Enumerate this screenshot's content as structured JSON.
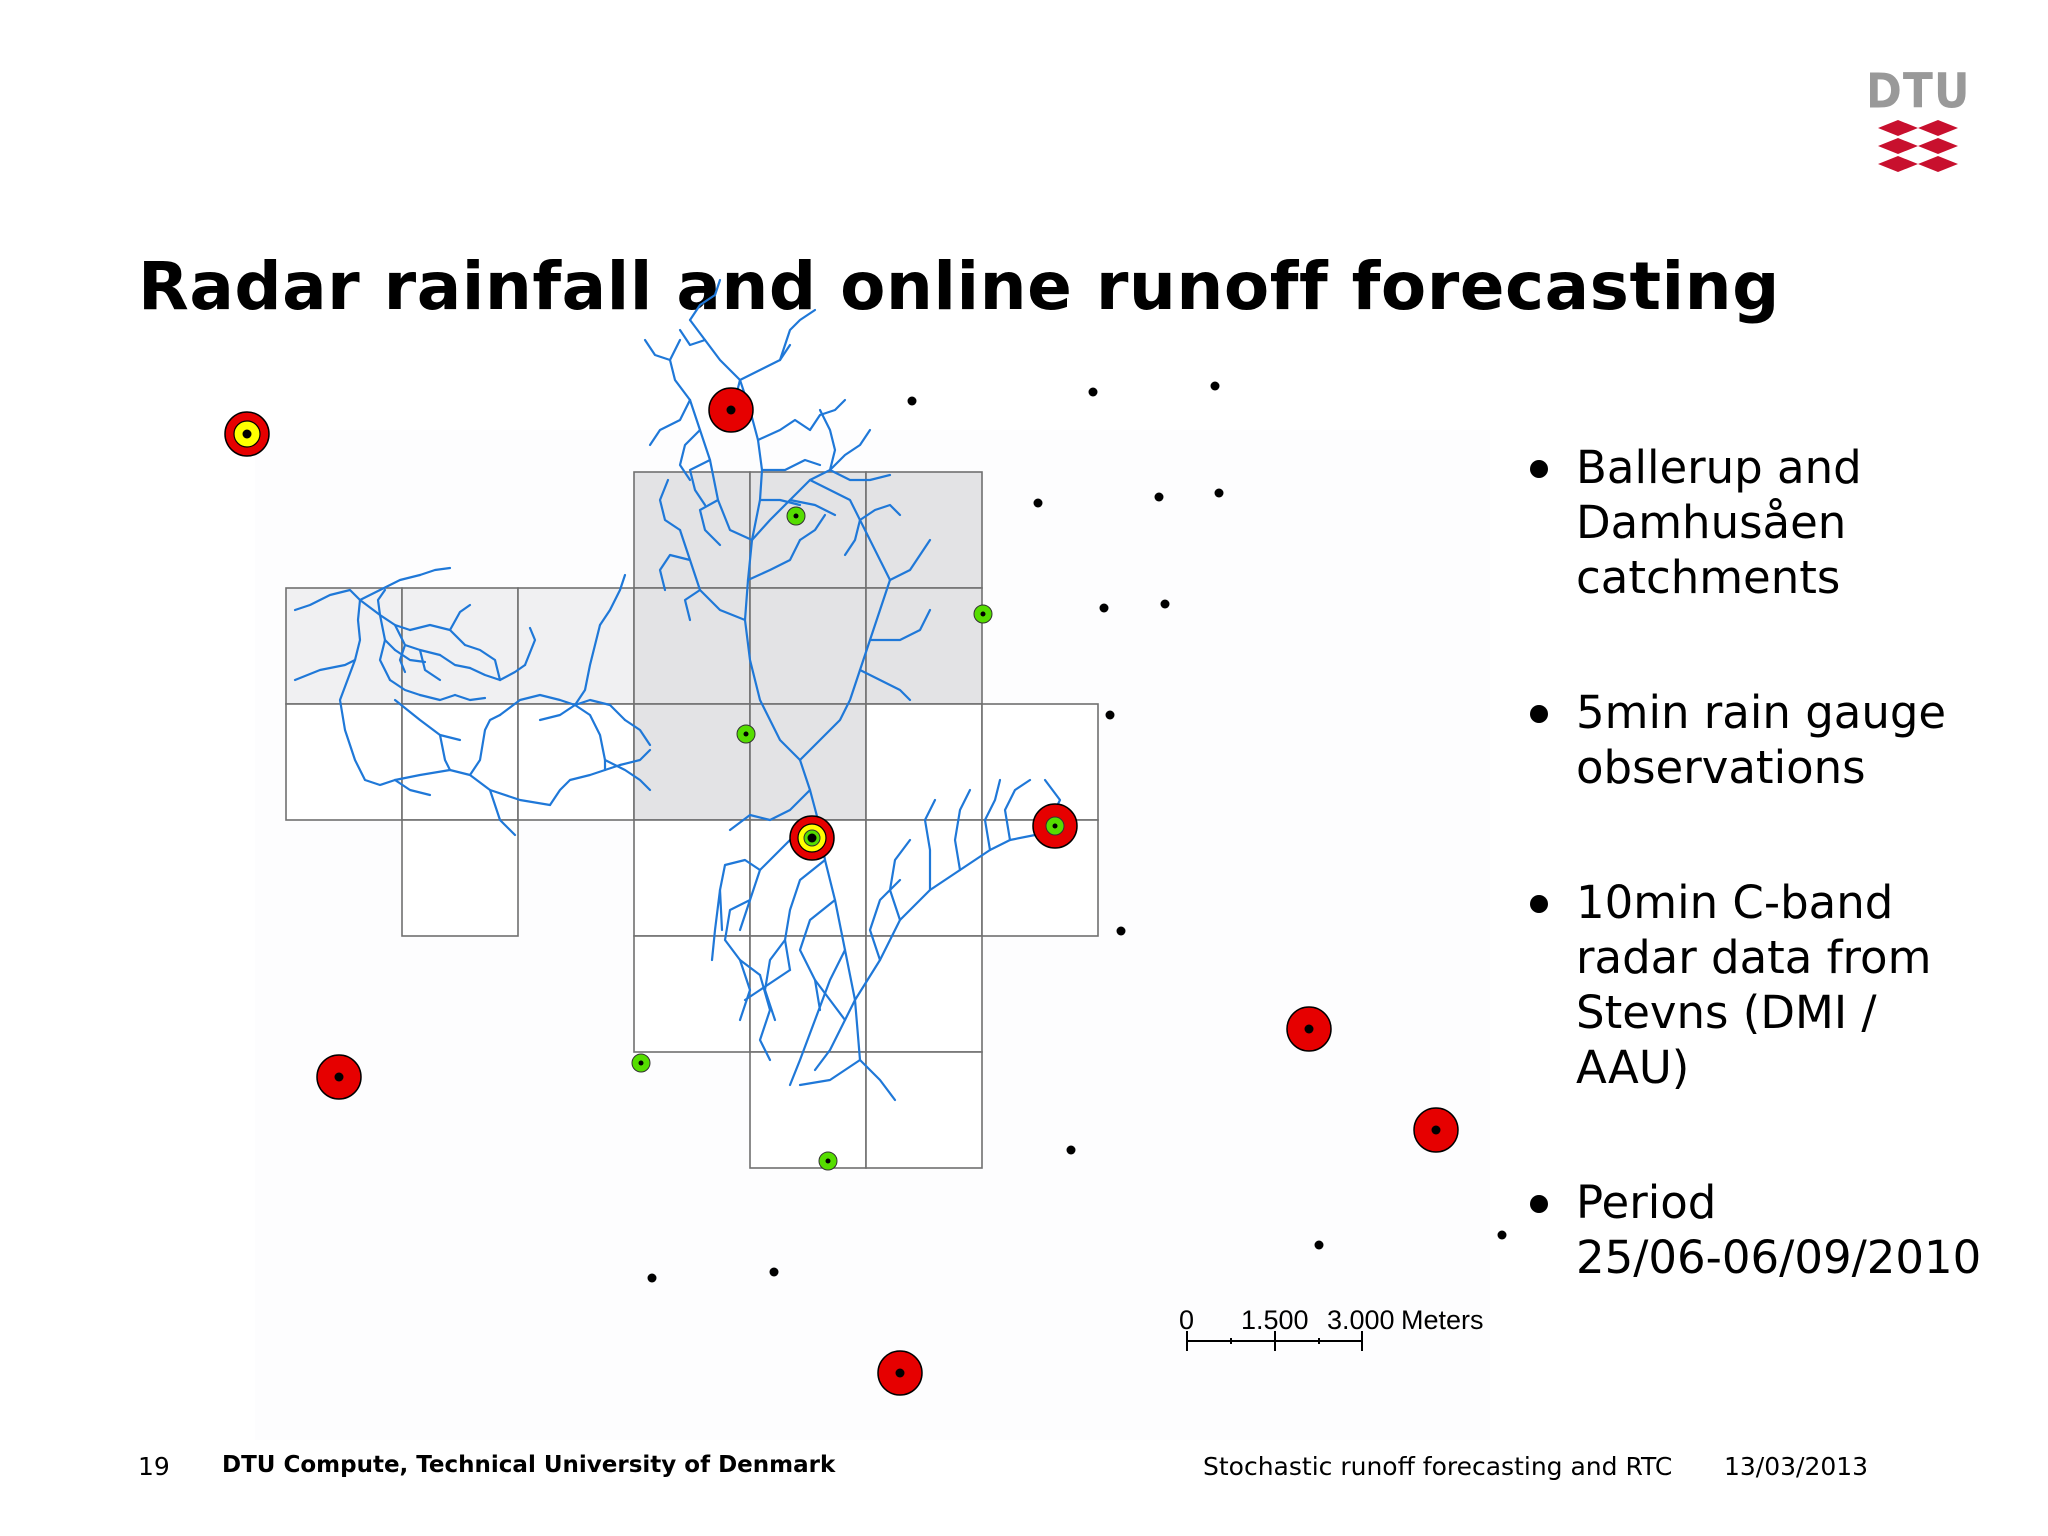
{
  "slide": {
    "title": "Radar rainfall and online runoff forecasting",
    "page_number": "19",
    "organization": "DTU Compute, Technical University of Denmark",
    "talk_title": "Stochastic runoff forecasting and RTC",
    "date": "13/03/2013"
  },
  "logo": {
    "text": "DTU",
    "text_color": "#999999",
    "wave_color": "#c8102e"
  },
  "bullets": [
    [
      "Ballerup and",
      "Damhusåen",
      "catchments"
    ],
    [
      "5min rain gauge",
      "observations"
    ],
    [
      "10min C-band",
      "radar data from",
      "Stevns (DMI /",
      "AAU)"
    ],
    [
      "Period",
      "25/06-06/09/2010"
    ]
  ],
  "scale_bar": {
    "ticks": [
      "0",
      "1.500",
      "3.000"
    ],
    "unit": "Meters"
  },
  "colors": {
    "sewer_network": "#1f78d8",
    "radar_cell_dark": "#e3e3e5",
    "radar_cell_light": "#f0f0f2",
    "station_red": "#e60000",
    "station_yellow": "#ffff00",
    "station_green": "#55dd00"
  }
}
